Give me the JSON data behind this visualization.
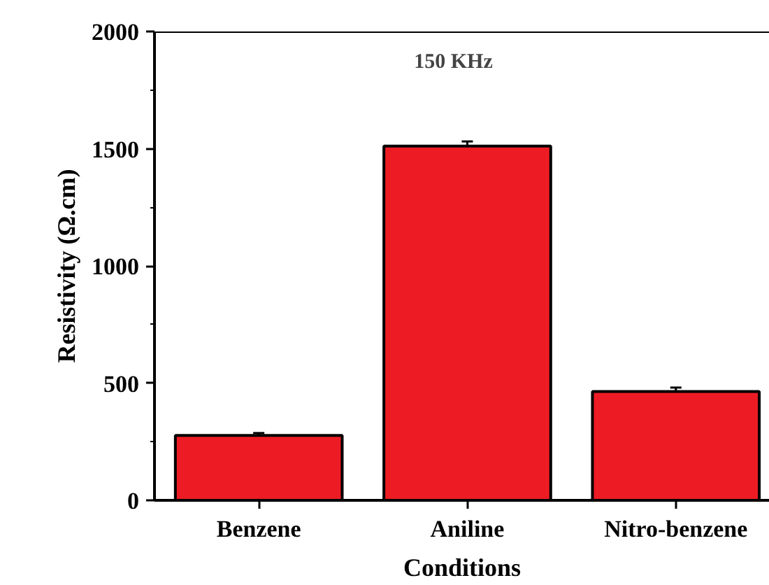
{
  "chart_data": {
    "type": "bar",
    "xlabel": "Conditions",
    "ylabel": "Resistivity (Ω.cm)",
    "annotations": [
      "150 KHz"
    ],
    "categories": [
      "Benzene",
      "Aniline",
      "Nitro-benzene"
    ],
    "values": [
      277,
      1511,
      464
    ],
    "errors": [
      10,
      20,
      17
    ],
    "color": "#ed1c24",
    "ylim": [
      0,
      2000
    ],
    "yticks": [
      0,
      500,
      1000,
      1500,
      2000
    ],
    "grid": false
  }
}
